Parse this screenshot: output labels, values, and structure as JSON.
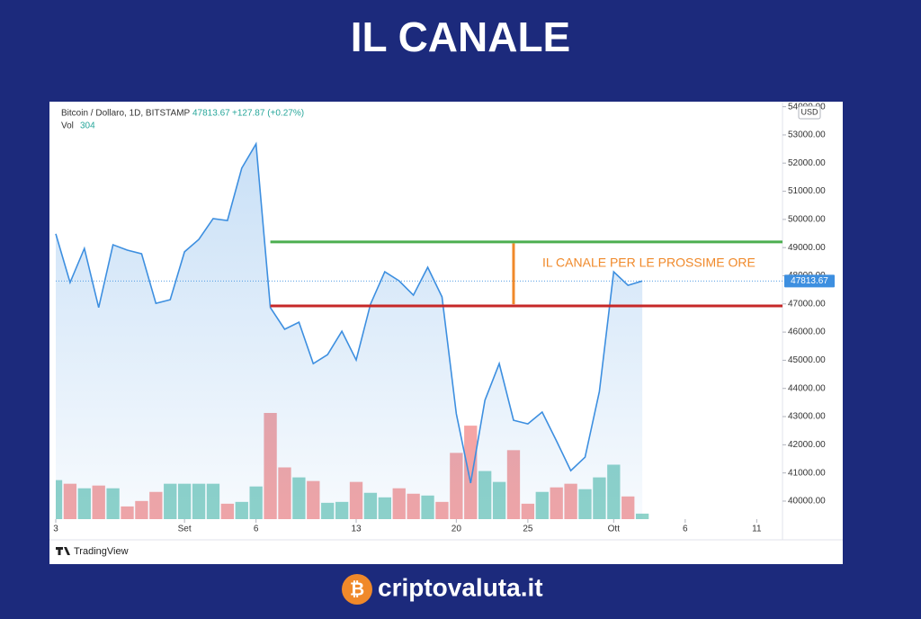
{
  "title": "IL CANALE",
  "brand": "criptovaluta.it",
  "chart_data": {
    "type": "line",
    "symbol": "Bitcoin / Dollaro, 1D, BITSTAMP",
    "change": "+127.87 (+0.27%)",
    "volume_label": "Vol",
    "currency": "USD",
    "annotation": "IL CANALE PER LE PROSSIME ORE",
    "watermark": "TradingView",
    "x": [
      0,
      1,
      2,
      3,
      4,
      5,
      6,
      7,
      8,
      9,
      10,
      11,
      12,
      13,
      14,
      15,
      16,
      17,
      18,
      19,
      20,
      21,
      22,
      23,
      24,
      25,
      26,
      27,
      28,
      29,
      30,
      31,
      32,
      33,
      34,
      35,
      36,
      37,
      38,
      39,
      40,
      41
    ],
    "xlim": [
      0,
      50.8
    ],
    "xticks": [
      {
        "value": 0,
        "label": "3"
      },
      {
        "value": 9,
        "label": "Set"
      },
      {
        "value": 14,
        "label": "6"
      },
      {
        "value": 21,
        "label": "13"
      },
      {
        "value": 28,
        "label": "20"
      },
      {
        "value": 33,
        "label": "25"
      },
      {
        "value": 39,
        "label": "Ott"
      },
      {
        "value": 44,
        "label": "6"
      },
      {
        "value": 49,
        "label": "11"
      }
    ],
    "ylim": [
      39360,
      54180
    ],
    "yticks": [
      {
        "value": 40000,
        "label": "40000.00"
      },
      {
        "value": 41000,
        "label": "41000.00"
      },
      {
        "value": 42000,
        "label": "42000.00"
      },
      {
        "value": 43000,
        "label": "43000.00"
      },
      {
        "value": 44000,
        "label": "44000.00"
      },
      {
        "value": 45000,
        "label": "45000.00"
      },
      {
        "value": 46000,
        "label": "46000.00"
      },
      {
        "value": 47000,
        "label": "47000.00"
      },
      {
        "value": 48000,
        "label": "48000.00"
      },
      {
        "value": 49000,
        "label": "49000.00"
      },
      {
        "value": 50000,
        "label": "50000.00"
      },
      {
        "value": 51000,
        "label": "51000.00"
      },
      {
        "value": 52000,
        "label": "52000.00"
      },
      {
        "value": 53000,
        "label": "53000.00"
      },
      {
        "value": 54000,
        "label": "54000.00"
      }
    ],
    "y2lim": [
      0,
      23000
    ],
    "series": [
      {
        "name": "Bitcoin / Dollaro",
        "color": "#3d8fe0",
        "values": [
          49490,
          47760,
          48970,
          46870,
          49100,
          48910,
          48780,
          47020,
          47150,
          48850,
          49290,
          50030,
          49960,
          51820,
          52680,
          46870,
          46100,
          46350,
          44880,
          45200,
          46030,
          45010,
          46990,
          48140,
          47820,
          47310,
          48300,
          47250,
          43100,
          40640,
          43580,
          44880,
          42870,
          42740,
          43160,
          42140,
          41080,
          41560,
          43890,
          48140,
          47660,
          47813.67
        ]
      },
      {
        "name": "Vol",
        "axis": "y2",
        "up_color": "#8fd3c9",
        "down_color": "#f5a5a5",
        "direction": [
          "up",
          "down",
          "up",
          "down",
          "up",
          "down",
          "down",
          "down",
          "up",
          "up",
          "up",
          "up",
          "down",
          "up",
          "up",
          "down",
          "down",
          "up",
          "down",
          "up",
          "up",
          "down",
          "up",
          "up",
          "down",
          "down",
          "up",
          "down",
          "down",
          "down",
          "up",
          "up",
          "down",
          "down",
          "up",
          "down",
          "down",
          "up",
          "up",
          "up",
          "down",
          "up"
        ],
        "values": [
          2150,
          1950,
          1700,
          1850,
          1700,
          700,
          1000,
          1500,
          1950,
          1950,
          1950,
          1950,
          850,
          950,
          1800,
          5850,
          2850,
          2300,
          2100,
          900,
          950,
          2050,
          1450,
          1200,
          1700,
          1400,
          1300,
          950,
          3650,
          5150,
          2650,
          2050,
          3800,
          850,
          1500,
          1750,
          1950,
          1650,
          2300,
          3000,
          1250,
          304
        ]
      }
    ],
    "levels": [
      {
        "value": 49200,
        "color": "#4caf50",
        "x_start": 15
      },
      {
        "value": 46930,
        "color": "#c62828",
        "x_start": 15
      }
    ],
    "range_marker": {
      "x": 32,
      "from": 46990,
      "to": 49150,
      "color": "#f0892a"
    }
  }
}
